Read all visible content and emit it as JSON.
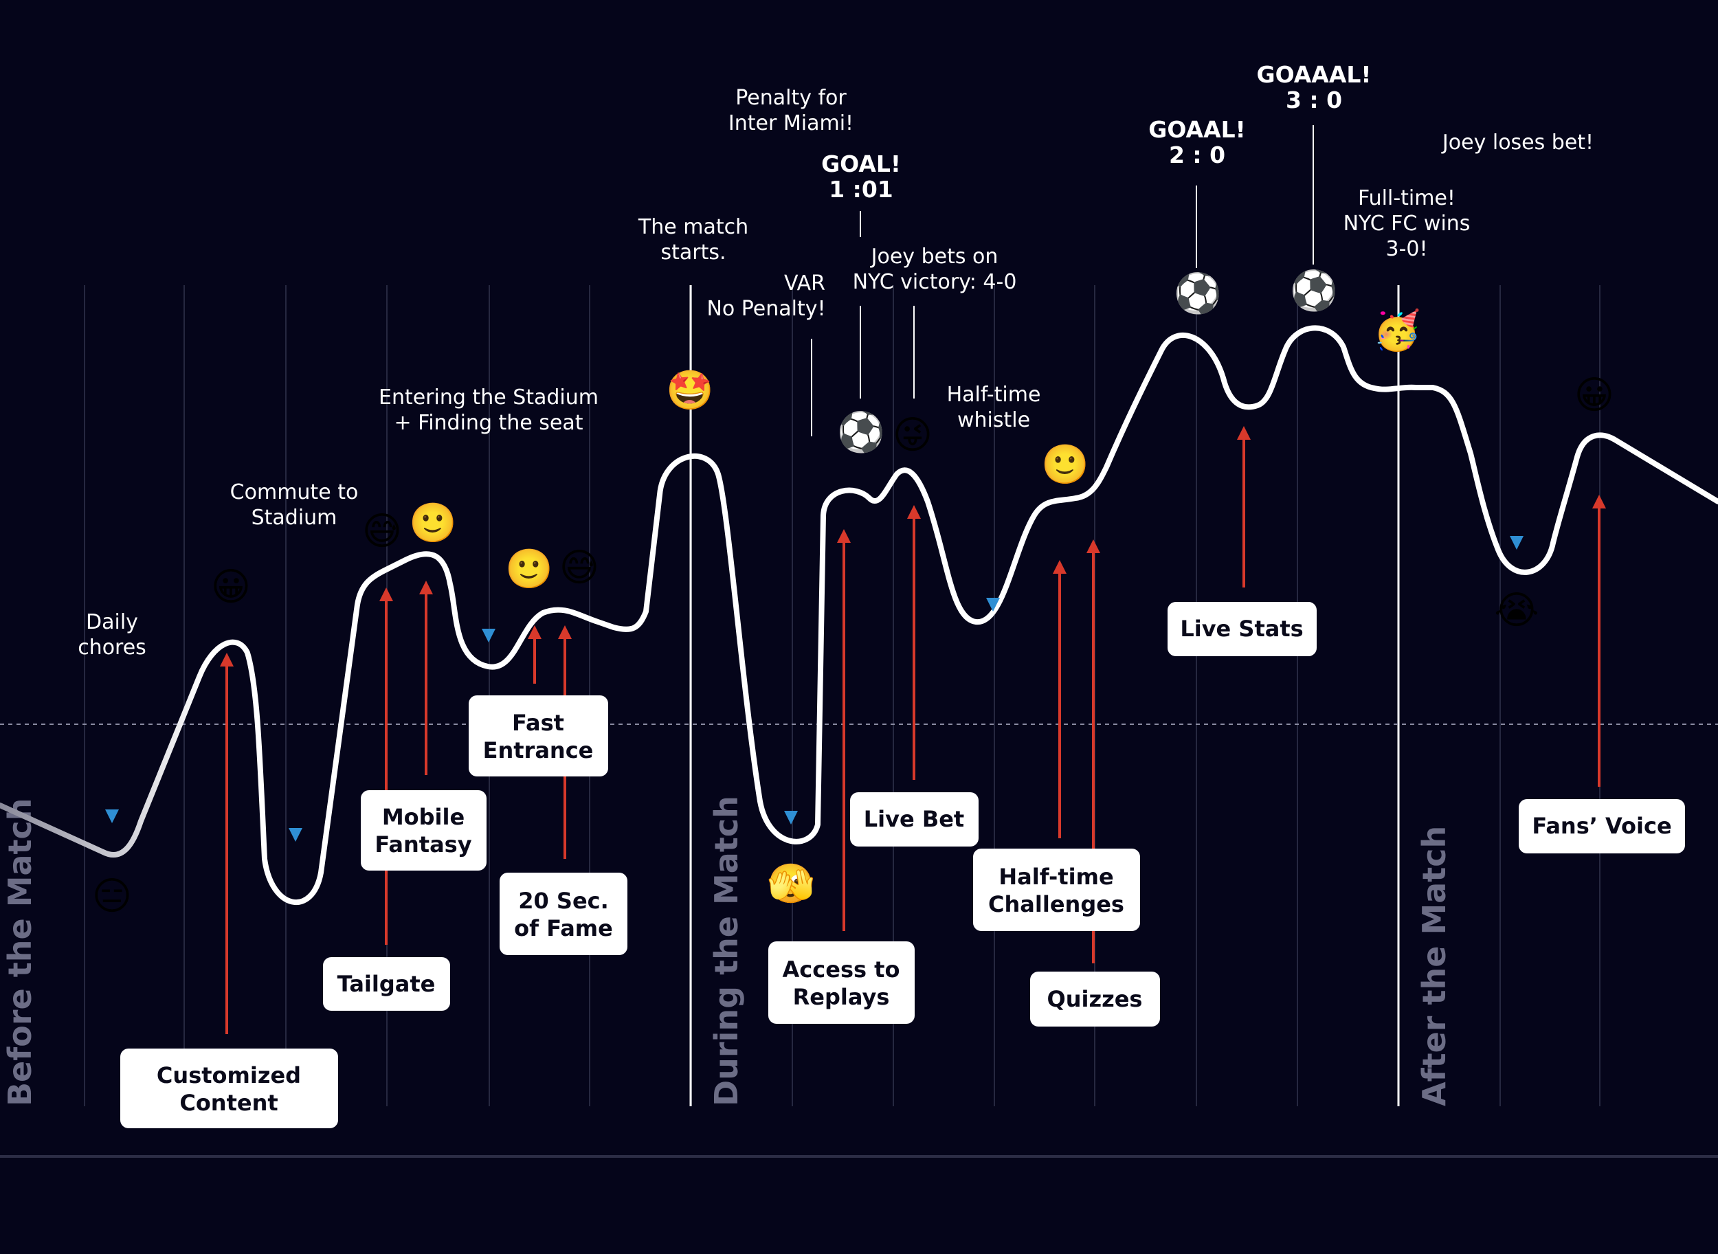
{
  "phases": {
    "before": "Before the Match",
    "during": "During the Match",
    "after": "After the Match"
  },
  "colors": {
    "background": "#05051a",
    "curve": "#ffffff",
    "positive_arrow": "#d8392b",
    "negative_arrow": "#2f8fd4",
    "phase_text": "#6c6d86",
    "card": "#ffffff"
  },
  "events": {
    "daily_chores": [
      "Daily",
      "chores"
    ],
    "commute": [
      "Commute to",
      "Stadium"
    ],
    "entering": [
      "Entering the Stadium",
      "+ Finding the seat"
    ],
    "match_starts": [
      "The match",
      "starts."
    ],
    "penalty": [
      "Penalty for",
      "Inter Miami!"
    ],
    "var": [
      "VAR",
      "No Penalty!"
    ],
    "goal1": [
      "GOAL!",
      "1 :01"
    ],
    "bet": [
      "Joey bets on",
      "NYC victory: 4-0"
    ],
    "halftime": [
      "Half-time",
      "whistle"
    ],
    "goal2": [
      "GOAAL!",
      "2 : 0"
    ],
    "goal3": [
      "GOAAAL!",
      "3 : 0"
    ],
    "fulltime": [
      "Full-time!",
      "NYC FC wins",
      "3-0!"
    ],
    "loses_bet": [
      "Joey loses bet!"
    ]
  },
  "features": {
    "customized_content": [
      "Customized",
      "Content"
    ],
    "tailgate": [
      "Tailgate"
    ],
    "mobile_fantasy": [
      "Mobile",
      "Fantasy"
    ],
    "fast_entrance": [
      "Fast",
      "Entrance"
    ],
    "twenty_sec": [
      "20 Sec.",
      "of Fame"
    ],
    "access_replays": [
      "Access to",
      "Replays"
    ],
    "live_bet": [
      "Live Bet"
    ],
    "halftime_challenges": [
      "Half-time",
      "Challenges"
    ],
    "quizzes": [
      "Quizzes"
    ],
    "live_stats": [
      "Live Stats"
    ],
    "fans_voice": [
      "Fans’ Voice"
    ]
  },
  "emojis": {
    "expressionless": "😑",
    "grinning": "😀",
    "sweat_smile": "😅",
    "slight_smile": "🙂",
    "star_struck": "🤩",
    "peeking": "🫣",
    "soccer": "⚽",
    "winking_tongue": "😜",
    "party": "🥳",
    "crying": "😭"
  }
}
